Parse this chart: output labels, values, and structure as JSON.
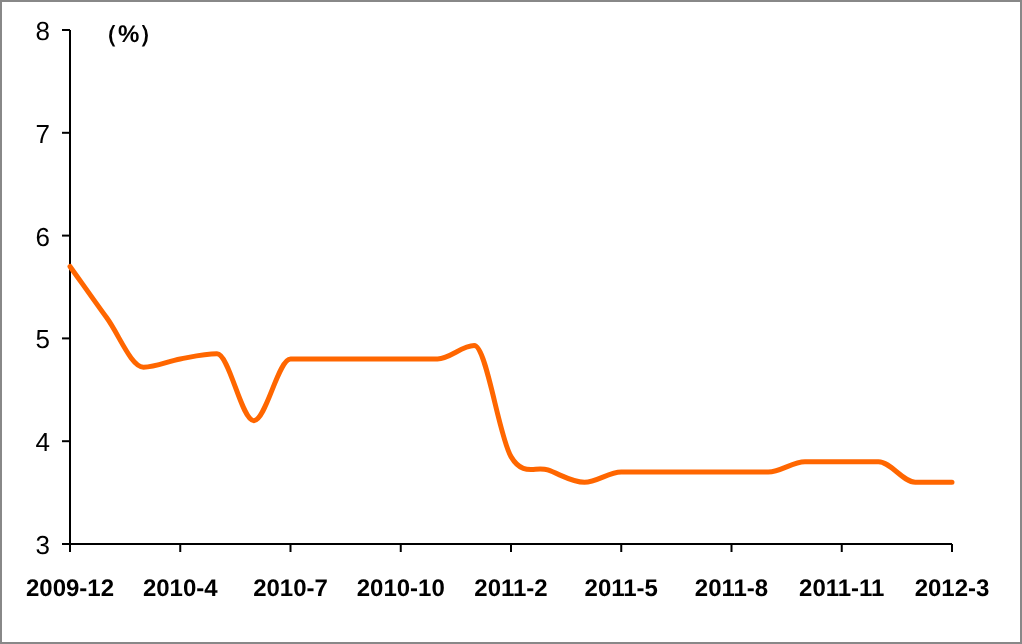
{
  "chart_data": {
    "type": "line",
    "ylabel": "（%）",
    "categories": [
      "2009-12",
      null,
      null,
      "2010-4",
      null,
      null,
      "2010-7",
      null,
      null,
      "2010-10",
      null,
      null,
      "2011-2",
      null,
      null,
      "2011-5",
      null,
      null,
      "2011-8",
      null,
      null,
      "2011-11",
      null,
      null,
      "2012-3"
    ],
    "series": [
      {
        "color": "#ff6600",
        "values": [
          5.7,
          5.2,
          4.72,
          4.8,
          4.85,
          4.2,
          4.8,
          4.8,
          4.8,
          4.8,
          4.8,
          4.93,
          3.85,
          3.72,
          3.6,
          3.7,
          3.7,
          3.7,
          3.7,
          3.7,
          3.8,
          3.8,
          3.8,
          3.6,
          3.6
        ]
      }
    ],
    "ylim": [
      3,
      8
    ],
    "yticks": [
      3,
      4,
      5,
      6,
      7,
      8
    ]
  }
}
